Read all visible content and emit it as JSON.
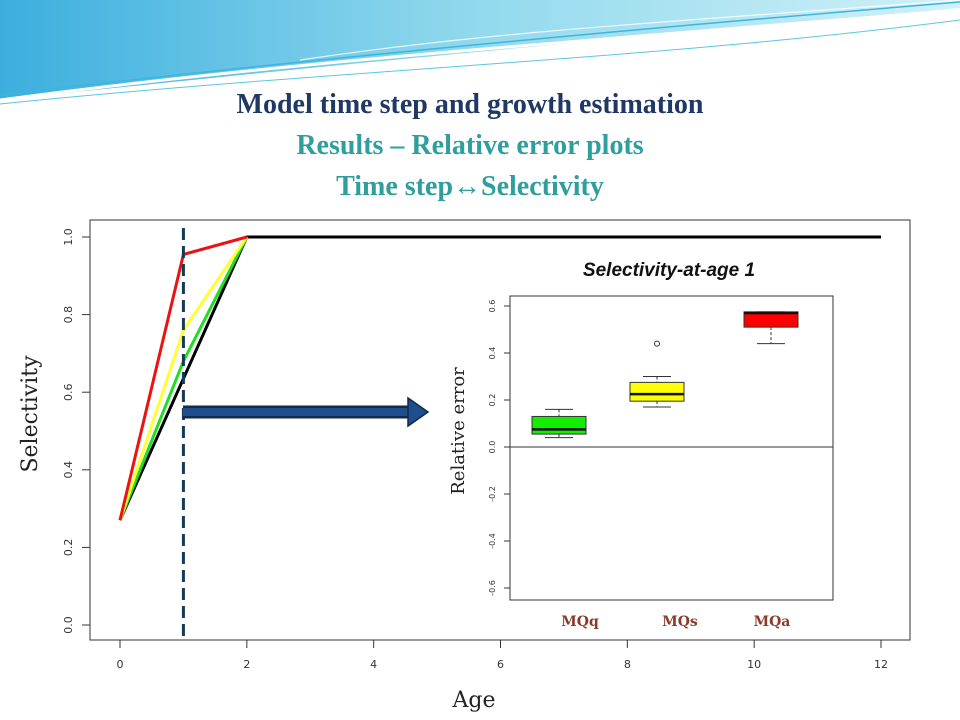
{
  "slide": {
    "title": "Model time step and growth estimation",
    "subtitle": "Results – Relative error plots",
    "subtitle2": "Time step↔Selectivity"
  },
  "colors": {
    "title": "#1f3864",
    "subtitle": "#2e9e9e",
    "arrow": "#1f4e8c",
    "swoosh": "#5bc6e0"
  },
  "chart_data": [
    {
      "type": "line",
      "xlabel": "Age",
      "ylabel": "Selectivity",
      "xlim": [
        0,
        12
      ],
      "ylim": [
        0,
        1
      ],
      "xticks": [
        "0",
        "2",
        "4",
        "6",
        "8",
        "10",
        "12"
      ],
      "yticks": [
        "0.0",
        "0.2",
        "0.4",
        "0.6",
        "0.8",
        "1.0"
      ],
      "vline_x": 1,
      "series": [
        {
          "color": "#000000",
          "x": [
            0,
            2,
            12
          ],
          "y": [
            0.27,
            1.0,
            1.0
          ]
        },
        {
          "color": "#22dd22",
          "x": [
            0,
            1,
            2
          ],
          "y": [
            0.27,
            0.68,
            1.0
          ]
        },
        {
          "color": "#ffff33",
          "x": [
            0,
            1,
            2
          ],
          "y": [
            0.27,
            0.76,
            1.0
          ]
        },
        {
          "color": "#ee1111",
          "x": [
            0,
            1,
            2
          ],
          "y": [
            0.27,
            0.955,
            1.0
          ]
        }
      ]
    },
    {
      "type": "box",
      "title": "Selectivity-at-age 1",
      "ylabel": "Relative error",
      "ylim": [
        -0.65,
        0.65
      ],
      "yticks": [
        "-0.6",
        "-0.4",
        "-0.2",
        "0.0",
        "0.2",
        "0.4",
        "0.6"
      ],
      "categories": [
        "MQq",
        "MQs",
        "MQa"
      ],
      "boxes": [
        {
          "name": "MQq",
          "color": "#11ee00",
          "min": 0.04,
          "q1": 0.055,
          "median": 0.075,
          "q3": 0.13,
          "max": 0.16,
          "outliers": []
        },
        {
          "name": "MQs",
          "color": "#ffff00",
          "min": 0.17,
          "q1": 0.195,
          "median": 0.225,
          "q3": 0.275,
          "max": 0.3,
          "outliers": [
            0.44
          ]
        },
        {
          "name": "MQa",
          "color": "#ff0000",
          "min": 0.44,
          "q1": 0.51,
          "median": 0.57,
          "q3": 0.575,
          "max": 0.575,
          "outliers": []
        }
      ]
    }
  ]
}
